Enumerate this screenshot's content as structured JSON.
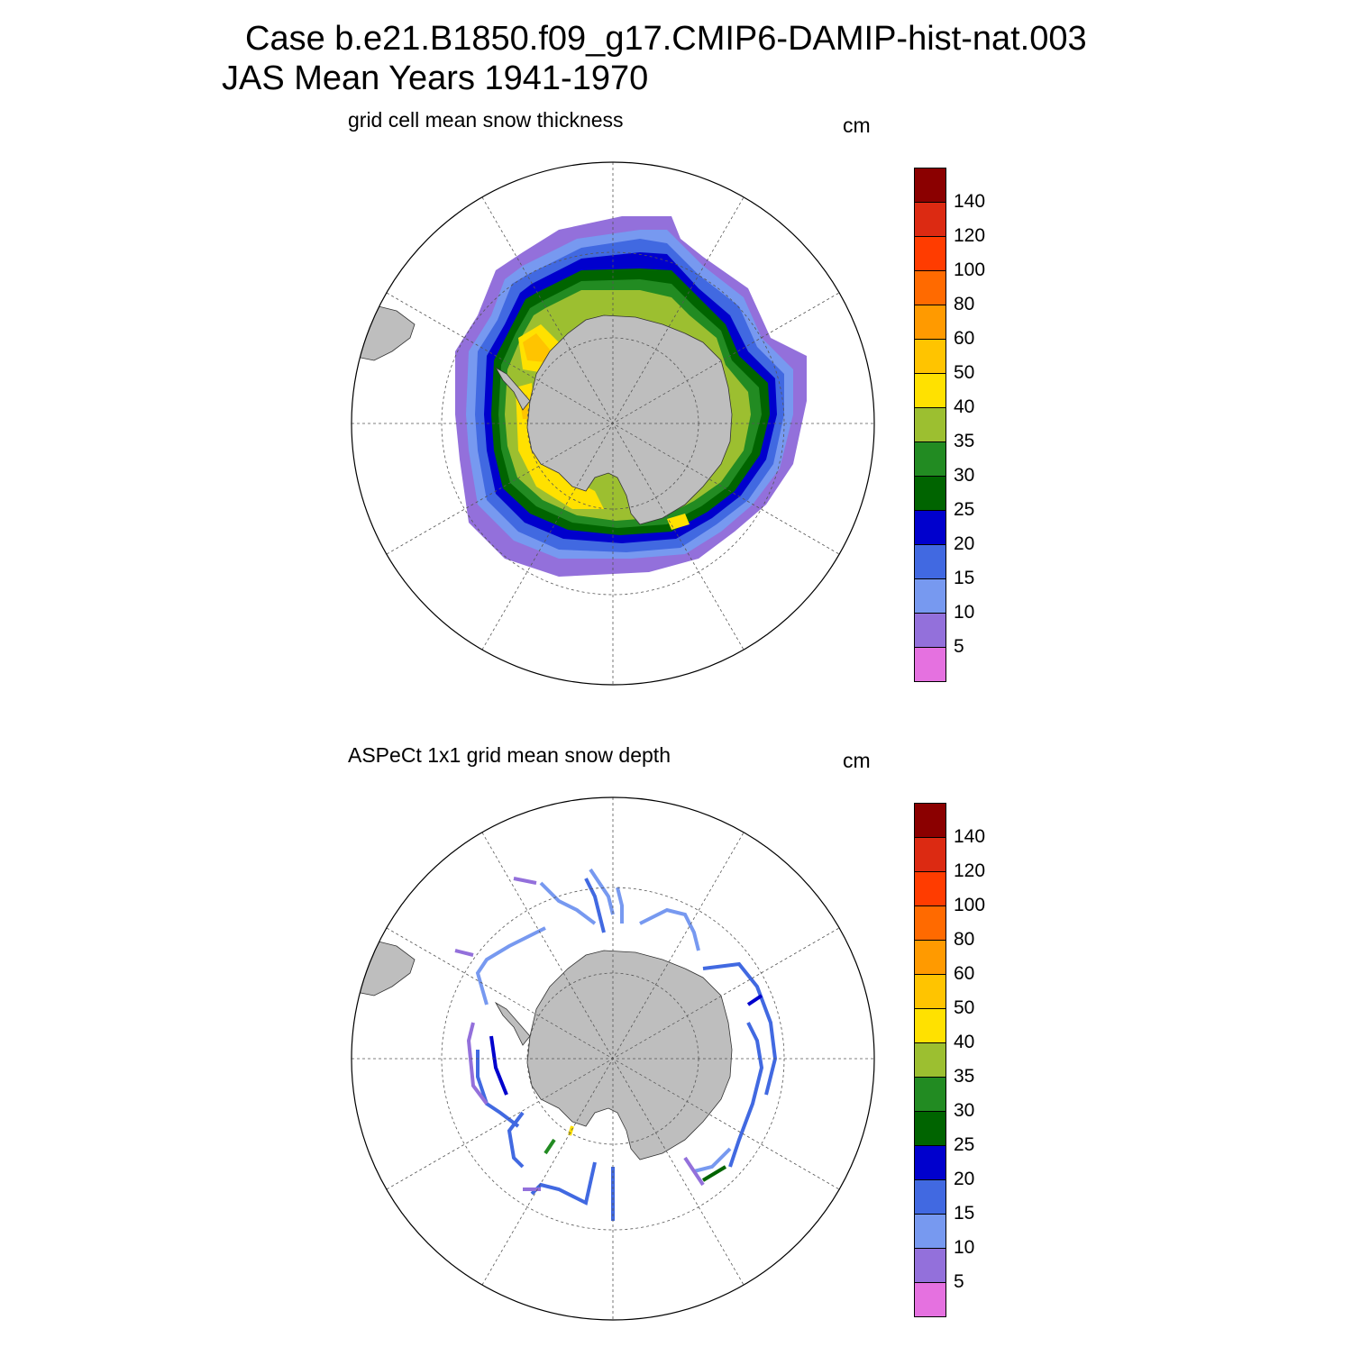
{
  "title": {
    "line1": "Case b.e21.B1850.f09_g17.CMIP6-DAMIP-hist-nat.003",
    "line2": "JAS Mean   Years 1941-1970"
  },
  "panels": [
    {
      "id": "model",
      "subtitle": "grid cell mean snow thickness",
      "units": "cm"
    },
    {
      "id": "obs",
      "subtitle": "ASPeCt 1x1 grid mean snow depth",
      "units": "cm"
    }
  ],
  "colorbar": {
    "labels": [
      "140",
      "120",
      "100",
      "80",
      "60",
      "50",
      "40",
      "35",
      "30",
      "25",
      "20",
      "15",
      "10",
      "5"
    ],
    "colors": [
      "#8b0000",
      "#dc2a12",
      "#ff3c00",
      "#ff6a00",
      "#ff9a00",
      "#ffc400",
      "#ffe100",
      "#9cbf30",
      "#228b22",
      "#006400",
      "#0000cd",
      "#4169e1",
      "#7799f0",
      "#9370db",
      "#e571e0"
    ]
  },
  "map_style": {
    "land": "#bebebe",
    "coast": "#333333",
    "grid": "#555555"
  }
}
